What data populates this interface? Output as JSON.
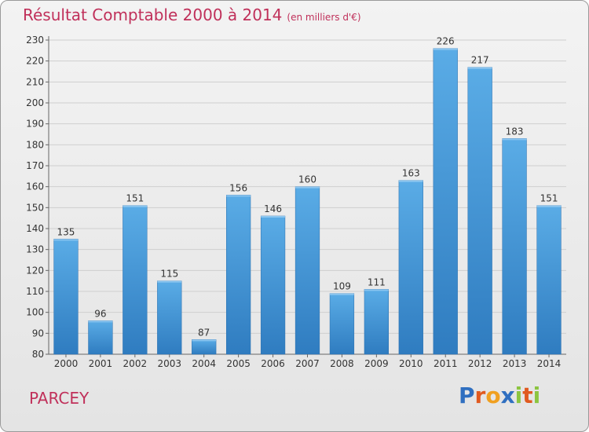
{
  "title": "Résultat Comptable 2000 à 2014",
  "unit": "(en milliers d'€)",
  "commune": "PARCEY",
  "logo": {
    "text": "Proxiti",
    "letters": [
      {
        "ch": "P",
        "color": "#2f6fc0"
      },
      {
        "ch": "r",
        "color": "#e05a20"
      },
      {
        "ch": "o",
        "color": "#f0a020"
      },
      {
        "ch": "x",
        "color": "#2f6fc0"
      },
      {
        "ch": "i",
        "color": "#8cc540"
      },
      {
        "ch": "t",
        "color": "#e05a20"
      },
      {
        "ch": "i",
        "color": "#8cc540"
      }
    ]
  },
  "colors": {
    "title": "#c0305a",
    "bar_top": "#5aace6",
    "bar_bottom": "#2f7cc0",
    "grid": "#cfcfcf",
    "axis_text": "#333333"
  },
  "chart_data": {
    "type": "bar",
    "categories": [
      "2000",
      "2001",
      "2002",
      "2003",
      "2004",
      "2005",
      "2006",
      "2007",
      "2008",
      "2009",
      "2010",
      "2011",
      "2012",
      "2013",
      "2014"
    ],
    "values": [
      135,
      96,
      151,
      115,
      87,
      156,
      146,
      160,
      109,
      111,
      163,
      226,
      217,
      183,
      151
    ],
    "ylim": [
      80,
      230
    ],
    "yticks": [
      80,
      90,
      100,
      110,
      120,
      130,
      140,
      150,
      160,
      170,
      180,
      190,
      200,
      210,
      220,
      230
    ],
    "grid": true,
    "data_labels": true
  }
}
